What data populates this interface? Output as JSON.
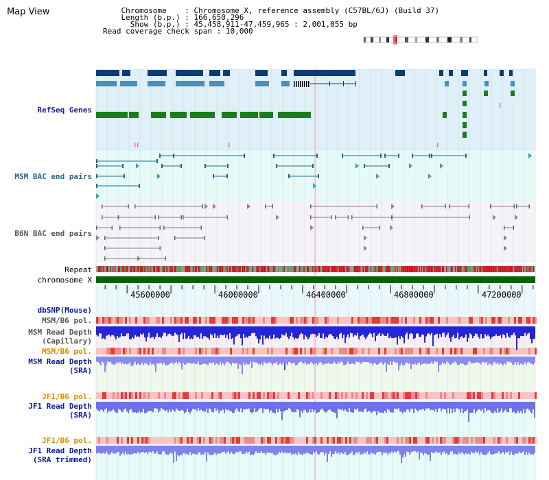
{
  "title": "Map View",
  "info": {
    "chromosome_label": "Chromosome",
    "chromosome_value": "Chromosome X, reference assembly (C57BL/6J) (Build 37)",
    "length_label": "Length (b.p.)",
    "length_value": "166,650,296",
    "show_label": "Show (b.p.)",
    "show_value": "45,458,911-47,459,965 : 2,001,055 bp",
    "coverage_label": "Read coverage check span",
    "coverage_value": "10,000"
  },
  "tracks": {
    "refseq": "RefSeq Genes",
    "msm_bac": "MSM BAC end pairs",
    "b6n_bac": "B6N BAC end pairs",
    "repeat": "Repeat",
    "chromosome": "chromosome X",
    "dbsnp": "dbSNP(Mouse)",
    "msm_pol1": "MSM/B6 pol.",
    "msm_depth_cap_1": "MSM Read Depth",
    "msm_depth_cap_2": "(Capillary)",
    "msm_pol2": "MSM/B6 pol.",
    "msm_depth_sra_1": "MSM Read Depth",
    "msm_depth_sra_2": "(SRA)",
    "jf1_pol1": "JF1/B6 pol.",
    "jf1_depth_sra_1": "JF1 Read Depth",
    "jf1_depth_sra_2": "(SRA)",
    "jf1_pol2": "JF1/B6 pol.",
    "jf1_depth_trim_1": "JF1 Read Depth",
    "jf1_depth_trim_2": "(SRA trimmed)"
  },
  "axis": {
    "start": 45458911,
    "end": 47459965,
    "ticks": [
      "45600000",
      "46000000",
      "46400000",
      "46800000",
      "47200000"
    ]
  },
  "colors": {
    "refseq_bg": "#dff0f8",
    "msm_bg": "#e6fbf8",
    "b6n_bg": "#f4f4f8",
    "gene_dark": "#0d3b75",
    "gene_mid": "#4a90b8",
    "gene_green": "#1e7a1e",
    "chrom": "#006400",
    "repeat_red": "#e60000"
  }
}
